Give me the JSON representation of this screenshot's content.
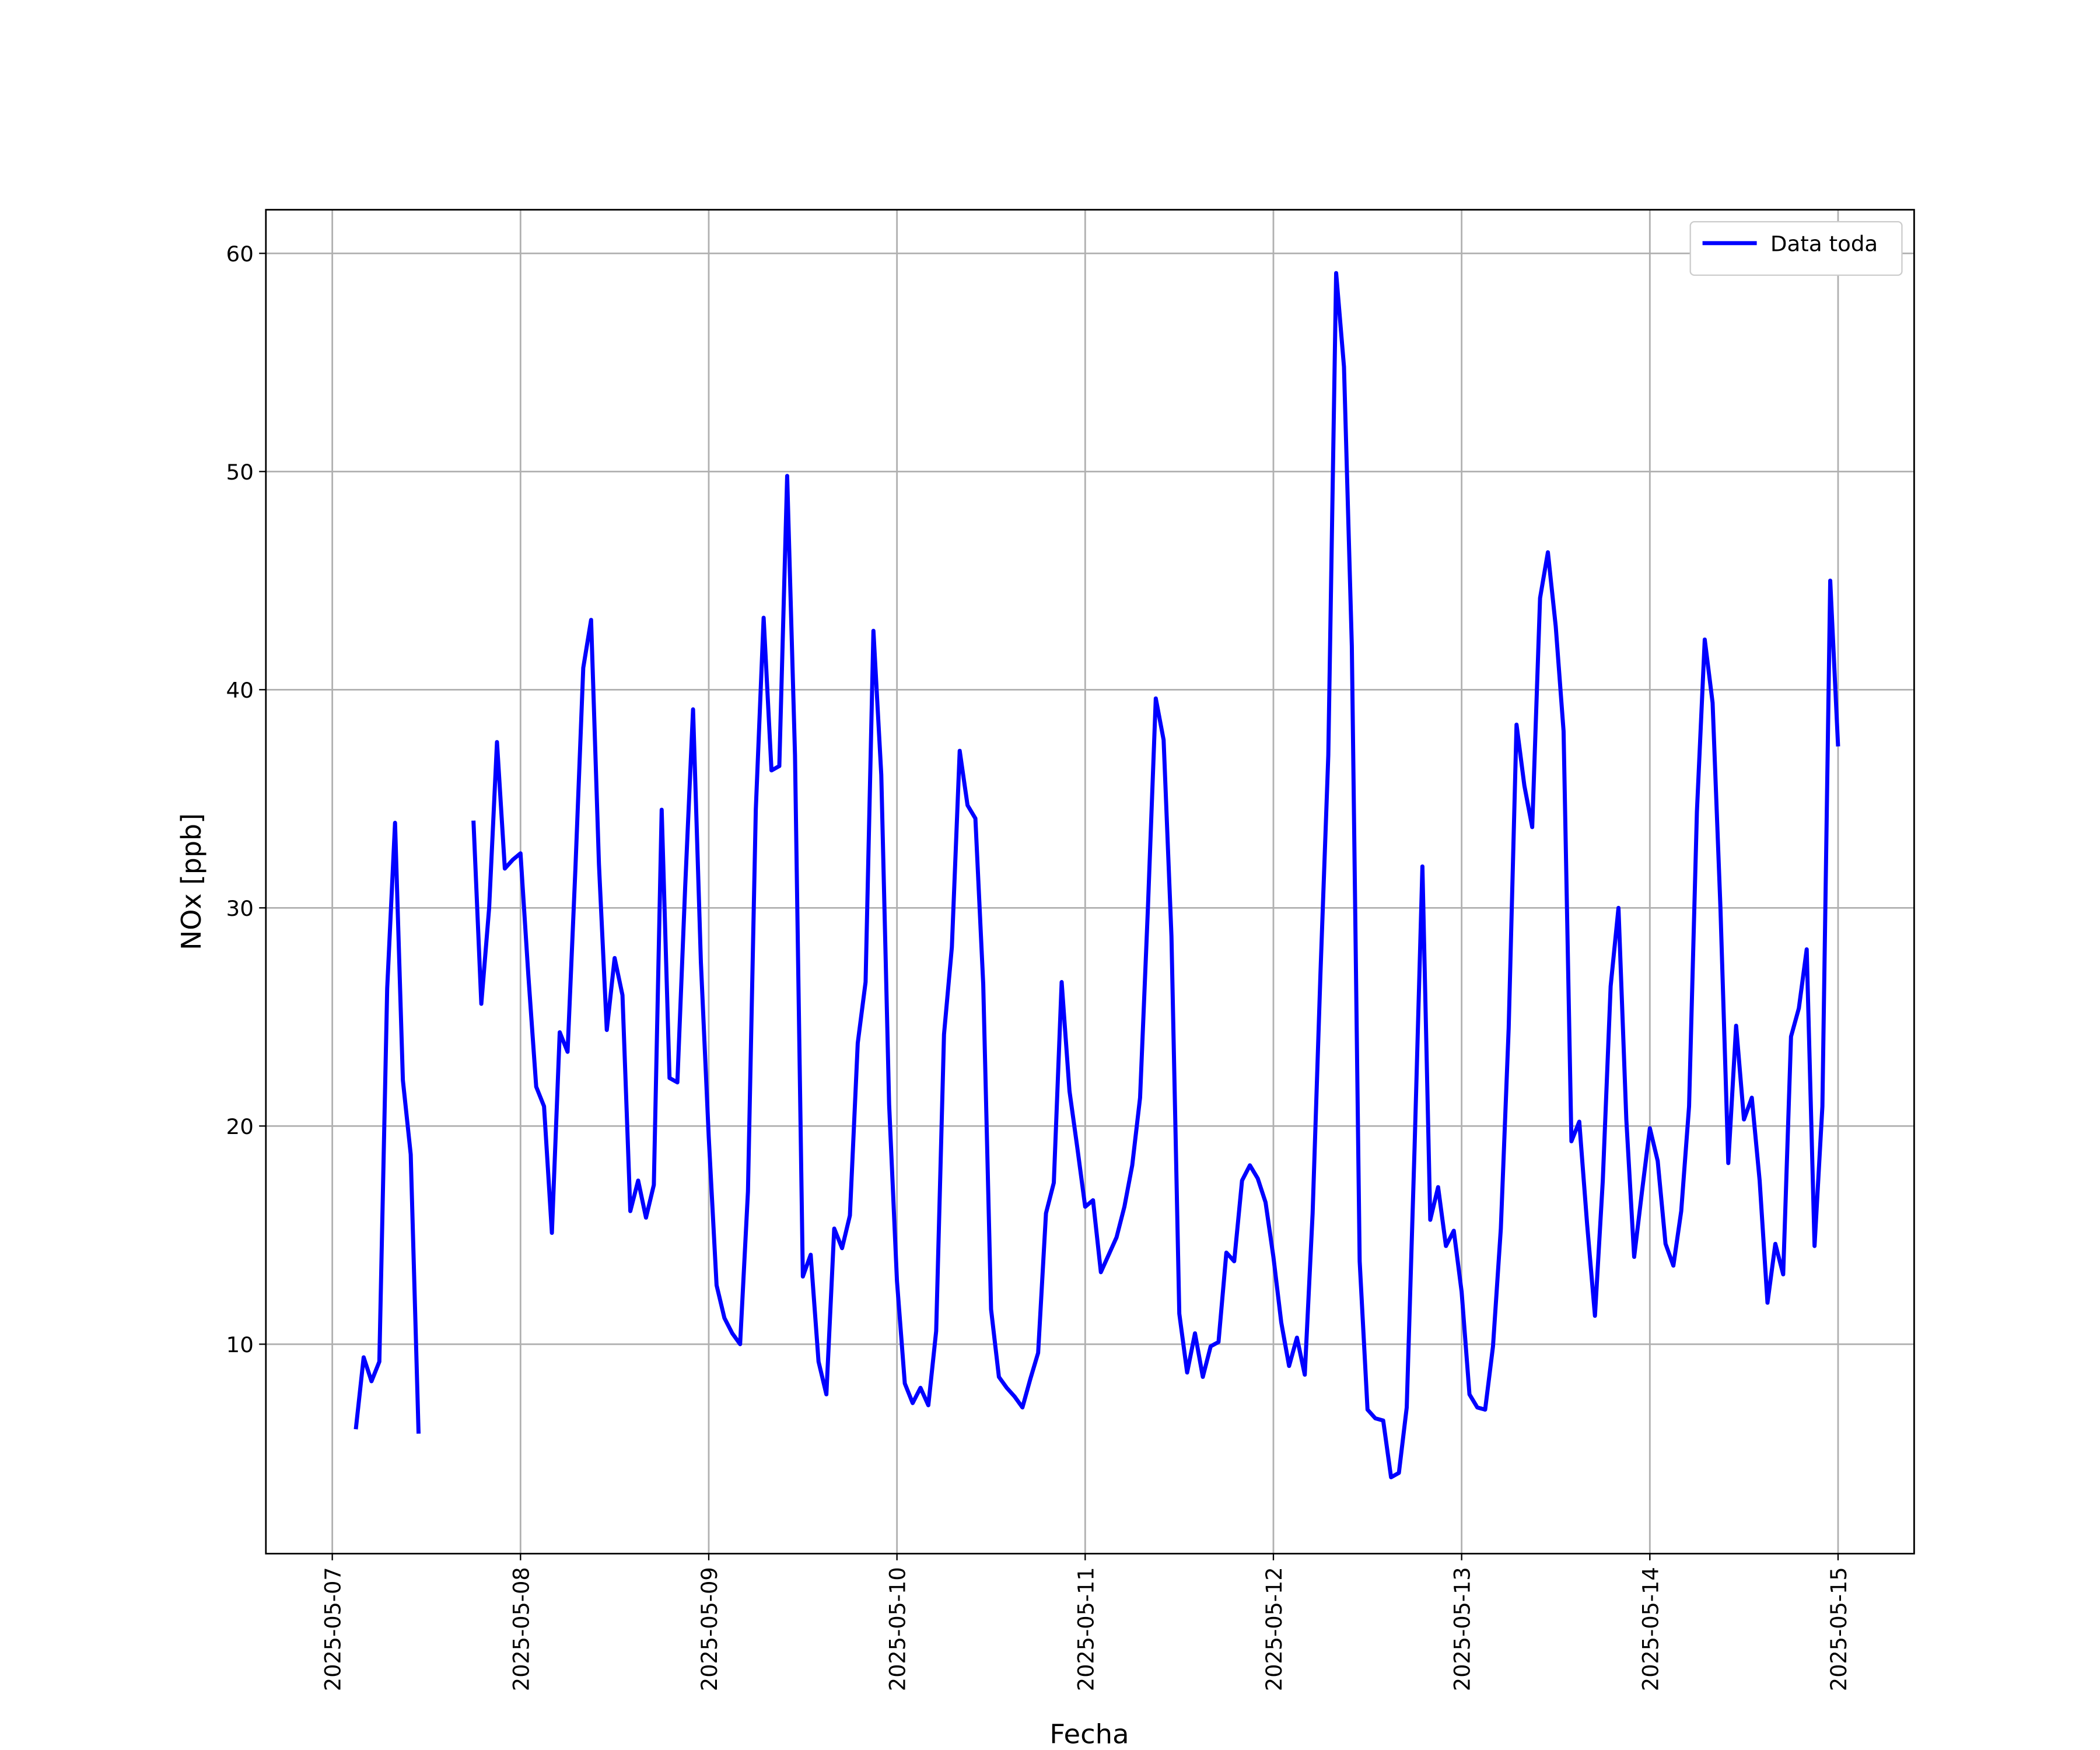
{
  "chart_data": {
    "type": "line",
    "xlabel": "Fecha",
    "ylabel": "NOx [ppb]",
    "x": [
      "2025-05-07T03:00",
      "2025-05-07T04:00",
      "2025-05-07T05:00",
      "2025-05-07T06:00",
      "2025-05-07T07:00",
      "2025-05-07T08:00",
      "2025-05-07T09:00",
      "2025-05-07T10:00",
      "2025-05-07T11:00",
      "2025-05-07T12:00",
      "2025-05-07T13:00",
      "2025-05-07T14:00",
      "2025-05-07T15:00",
      "2025-05-07T16:00",
      "2025-05-07T17:00",
      "2025-05-07T18:00",
      "2025-05-07T19:00",
      "2025-05-07T20:00",
      "2025-05-07T21:00",
      "2025-05-07T22:00",
      "2025-05-07T23:00",
      "2025-05-08T00:00",
      "2025-05-08T01:00",
      "2025-05-08T02:00",
      "2025-05-08T03:00",
      "2025-05-08T04:00",
      "2025-05-08T05:00",
      "2025-05-08T06:00",
      "2025-05-08T07:00",
      "2025-05-08T08:00",
      "2025-05-08T09:00",
      "2025-05-08T10:00",
      "2025-05-08T11:00",
      "2025-05-08T12:00",
      "2025-05-08T13:00",
      "2025-05-08T14:00",
      "2025-05-08T15:00",
      "2025-05-08T16:00",
      "2025-05-08T17:00",
      "2025-05-08T18:00",
      "2025-05-08T19:00",
      "2025-05-08T20:00",
      "2025-05-08T21:00",
      "2025-05-08T22:00",
      "2025-05-08T23:00",
      "2025-05-09T00:00",
      "2025-05-09T01:00",
      "2025-05-09T02:00",
      "2025-05-09T03:00",
      "2025-05-09T04:00",
      "2025-05-09T05:00",
      "2025-05-09T06:00",
      "2025-05-09T07:00",
      "2025-05-09T08:00",
      "2025-05-09T09:00",
      "2025-05-09T10:00",
      "2025-05-09T11:00",
      "2025-05-09T12:00",
      "2025-05-09T13:00",
      "2025-05-09T14:00",
      "2025-05-09T15:00",
      "2025-05-09T16:00",
      "2025-05-09T17:00",
      "2025-05-09T18:00",
      "2025-05-09T19:00",
      "2025-05-09T20:00",
      "2025-05-09T21:00",
      "2025-05-09T22:00",
      "2025-05-09T23:00",
      "2025-05-10T00:00",
      "2025-05-10T01:00",
      "2025-05-10T02:00",
      "2025-05-10T03:00",
      "2025-05-10T04:00",
      "2025-05-10T05:00",
      "2025-05-10T06:00",
      "2025-05-10T07:00",
      "2025-05-10T08:00",
      "2025-05-10T09:00",
      "2025-05-10T10:00",
      "2025-05-10T11:00",
      "2025-05-10T12:00",
      "2025-05-10T13:00",
      "2025-05-10T14:00",
      "2025-05-10T15:00",
      "2025-05-10T16:00",
      "2025-05-10T17:00",
      "2025-05-10T18:00",
      "2025-05-10T19:00",
      "2025-05-10T20:00",
      "2025-05-10T21:00",
      "2025-05-10T22:00",
      "2025-05-10T23:00",
      "2025-05-11T00:00",
      "2025-05-11T01:00",
      "2025-05-11T02:00",
      "2025-05-11T03:00",
      "2025-05-11T04:00",
      "2025-05-11T05:00",
      "2025-05-11T06:00",
      "2025-05-11T07:00",
      "2025-05-11T08:00",
      "2025-05-11T09:00",
      "2025-05-11T10:00",
      "2025-05-11T11:00",
      "2025-05-11T12:00",
      "2025-05-11T13:00",
      "2025-05-11T14:00",
      "2025-05-11T15:00",
      "2025-05-11T16:00",
      "2025-05-11T17:00",
      "2025-05-11T18:00",
      "2025-05-11T19:00",
      "2025-05-11T20:00",
      "2025-05-11T21:00",
      "2025-05-11T22:00",
      "2025-05-11T23:00",
      "2025-05-12T00:00",
      "2025-05-12T01:00",
      "2025-05-12T02:00",
      "2025-05-12T03:00",
      "2025-05-12T04:00",
      "2025-05-12T05:00",
      "2025-05-12T06:00",
      "2025-05-12T07:00",
      "2025-05-12T08:00",
      "2025-05-12T09:00",
      "2025-05-12T10:00",
      "2025-05-12T11:00",
      "2025-05-12T12:00",
      "2025-05-12T13:00",
      "2025-05-12T14:00",
      "2025-05-12T15:00",
      "2025-05-12T16:00",
      "2025-05-12T17:00",
      "2025-05-12T18:00",
      "2025-05-12T19:00",
      "2025-05-12T20:00",
      "2025-05-12T21:00",
      "2025-05-12T22:00",
      "2025-05-12T23:00",
      "2025-05-13T00:00",
      "2025-05-13T01:00",
      "2025-05-13T02:00",
      "2025-05-13T03:00",
      "2025-05-13T04:00",
      "2025-05-13T05:00",
      "2025-05-13T06:00",
      "2025-05-13T07:00",
      "2025-05-13T08:00",
      "2025-05-13T09:00",
      "2025-05-13T10:00",
      "2025-05-13T11:00",
      "2025-05-13T12:00",
      "2025-05-13T13:00",
      "2025-05-13T14:00",
      "2025-05-13T15:00",
      "2025-05-13T16:00",
      "2025-05-13T17:00",
      "2025-05-13T18:00",
      "2025-05-13T19:00",
      "2025-05-13T20:00",
      "2025-05-13T21:00",
      "2025-05-13T22:00",
      "2025-05-13T23:00",
      "2025-05-14T00:00",
      "2025-05-14T01:00",
      "2025-05-14T02:00",
      "2025-05-14T03:00",
      "2025-05-14T04:00",
      "2025-05-14T05:00",
      "2025-05-14T06:00",
      "2025-05-14T07:00",
      "2025-05-14T08:00",
      "2025-05-14T09:00",
      "2025-05-14T10:00",
      "2025-05-14T11:00",
      "2025-05-14T12:00",
      "2025-05-14T13:00",
      "2025-05-14T14:00",
      "2025-05-14T15:00",
      "2025-05-14T16:00",
      "2025-05-14T17:00",
      "2025-05-14T18:00",
      "2025-05-14T19:00",
      "2025-05-14T20:00",
      "2025-05-14T21:00",
      "2025-05-14T22:00",
      "2025-05-14T23:00",
      "2025-05-15T00:00"
    ],
    "series": [
      {
        "name": "Data toda",
        "color": "#0000ff",
        "values": [
          6.1,
          9.4,
          8.3,
          9.2,
          26.3,
          33.9,
          22.1,
          18.7,
          5.9,
          null,
          null,
          null,
          null,
          null,
          null,
          34.0,
          25.6,
          30.0,
          37.6,
          31.8,
          32.2,
          32.5,
          26.9,
          21.8,
          20.9,
          15.1,
          24.3,
          23.4,
          31.8,
          41.0,
          43.2,
          32.0,
          24.4,
          27.7,
          26.0,
          16.1,
          17.5,
          15.8,
          17.3,
          34.5,
          22.2,
          22.0,
          31.0,
          39.1,
          27.5,
          19.5,
          12.7,
          11.2,
          10.5,
          10.0,
          17.0,
          34.5,
          43.3,
          36.3,
          36.5,
          49.8,
          37.0,
          13.1,
          14.1,
          9.2,
          7.7,
          15.3,
          14.4,
          15.9,
          23.8,
          26.6,
          42.7,
          36.1,
          21.0,
          12.9,
          8.2,
          7.3,
          8.0,
          7.2,
          10.6,
          24.2,
          28.2,
          37.2,
          34.7,
          34.1,
          26.5,
          11.6,
          8.5,
          8.0,
          7.6,
          7.1,
          8.4,
          9.6,
          16.0,
          17.4,
          26.6,
          21.6,
          19.0,
          16.3,
          16.6,
          13.3,
          14.1,
          14.9,
          16.3,
          18.2,
          21.3,
          30.0,
          39.6,
          37.7,
          28.7,
          11.4,
          8.7,
          10.5,
          8.5,
          9.9,
          10.1,
          14.2,
          13.8,
          17.5,
          18.2,
          17.6,
          16.5,
          14.0,
          11.0,
          9.0,
          10.3,
          8.6,
          16.0,
          27.0,
          37.0,
          59.1,
          54.8,
          42.0,
          13.8,
          7.0,
          6.6,
          6.5,
          3.9,
          4.1,
          7.1,
          19.0,
          31.9,
          15.7,
          17.2,
          14.5,
          15.2,
          12.4,
          7.7,
          7.1,
          7.0,
          9.9,
          15.3,
          24.5,
          38.4,
          35.6,
          33.7,
          44.2,
          46.3,
          42.9,
          38.1,
          19.3,
          20.2,
          15.5,
          11.3,
          17.5,
          26.4,
          30.0,
          20.3,
          14.0,
          17.0,
          19.9,
          18.4,
          14.6,
          13.6,
          16.1,
          20.9,
          34.4,
          42.3,
          39.4,
          30.0,
          18.3,
          24.6,
          20.3,
          21.3,
          17.5,
          11.9,
          14.6,
          13.2,
          24.1,
          25.4,
          28.1,
          14.5,
          20.9,
          45.0,
          37.4
        ]
      }
    ],
    "xlim": [
      "2025-05-06T15:32",
      "2025-05-15T09:42"
    ],
    "xticks": [
      "2025-05-07",
      "2025-05-08",
      "2025-05-09",
      "2025-05-10",
      "2025-05-11",
      "2025-05-12",
      "2025-05-13",
      "2025-05-14",
      "2025-05-15"
    ],
    "ylim": [
      0.4,
      62.0
    ],
    "yticks": [
      10,
      20,
      30,
      40,
      50,
      60
    ],
    "grid": true,
    "legend": "upper right"
  }
}
